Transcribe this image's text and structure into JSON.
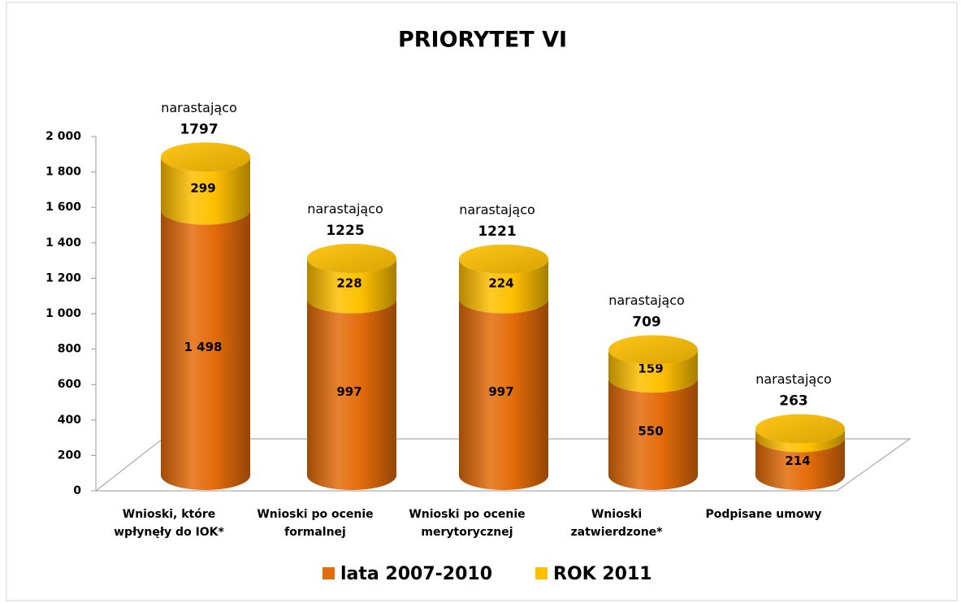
{
  "chart_data": {
    "type": "cylinder-stacked",
    "title": "PRIORYTET VI",
    "categories": [
      "Wnioski, które wpłynęły do IOK*",
      "Wnioski po ocenie formalnej",
      "Wnioski po ocenie merytorycznej",
      "Wnioski zatwierdzone*",
      "Podpisane umowy"
    ],
    "series": [
      {
        "name": "lata 2007-2010",
        "color": "#e46c0a",
        "values": [
          1498,
          997,
          997,
          550,
          214
        ],
        "value_labels": [
          "1 498",
          "997",
          "997",
          "550",
          "214"
        ]
      },
      {
        "name": "ROK 2011",
        "color": "#ffc000",
        "values": [
          299,
          228,
          224,
          159,
          49
        ]
      }
    ],
    "total_label": "narastająco",
    "totals": [
      1797,
      1225,
      1221,
      709,
      263
    ],
    "ylim": [
      0,
      2000
    ],
    "yticks": [
      0,
      200,
      400,
      600,
      800,
      {
        "value": 1000,
        "label": "1 000"
      },
      {
        "value": 1200,
        "label": "1 200"
      },
      {
        "value": 1400,
        "label": "1 400"
      },
      {
        "value": 1600,
        "label": "1 600"
      },
      {
        "value": 1800,
        "label": "1 800"
      },
      {
        "value": 2000,
        "label": "2 000"
      }
    ],
    "legend": "bottom"
  }
}
